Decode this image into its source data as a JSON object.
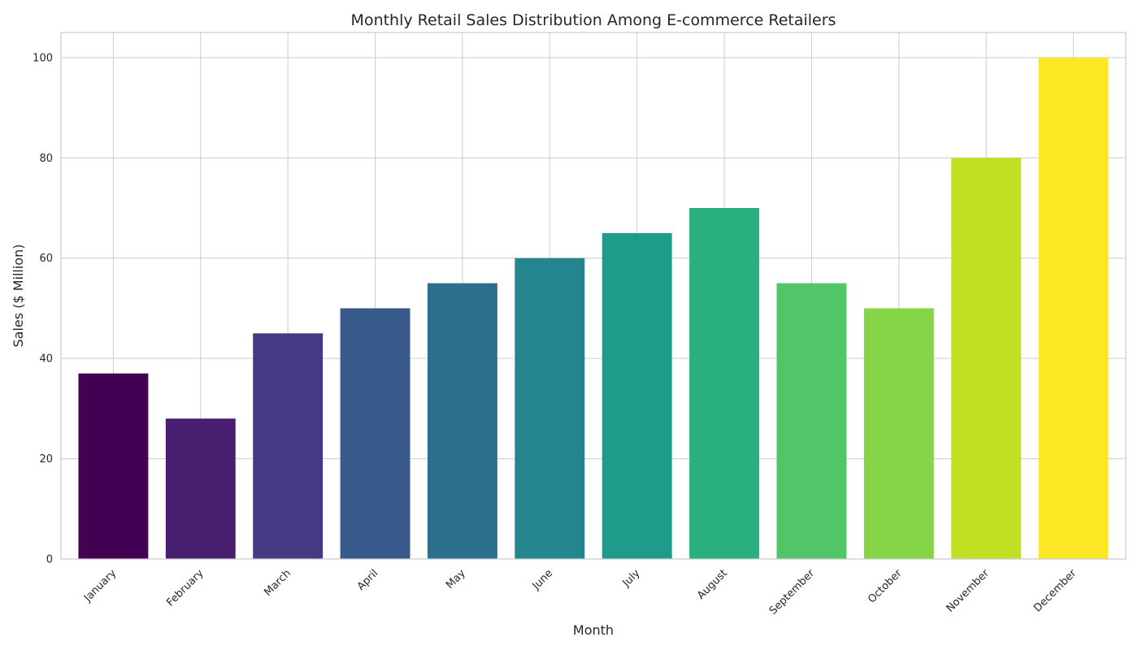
{
  "chart_data": {
    "type": "bar",
    "title": "Monthly Retail Sales Distribution Among E-commerce Retailers",
    "xlabel": "Month",
    "ylabel": "Sales ($ Million)",
    "categories": [
      "January",
      "February",
      "March",
      "April",
      "May",
      "June",
      "July",
      "August",
      "September",
      "October",
      "November",
      "December"
    ],
    "values": [
      37,
      28,
      45,
      50,
      55,
      60,
      65,
      70,
      55,
      50,
      80,
      100
    ],
    "colors": [
      "#440154",
      "#481f70",
      "#443a83",
      "#38598c",
      "#2d708e",
      "#25858e",
      "#1e9b8a",
      "#2ab07f",
      "#52c569",
      "#86d549",
      "#c2df23",
      "#fde725"
    ],
    "ylim": [
      0,
      105
    ],
    "yticks": [
      0,
      20,
      40,
      60,
      80,
      100
    ],
    "grid": true
  }
}
